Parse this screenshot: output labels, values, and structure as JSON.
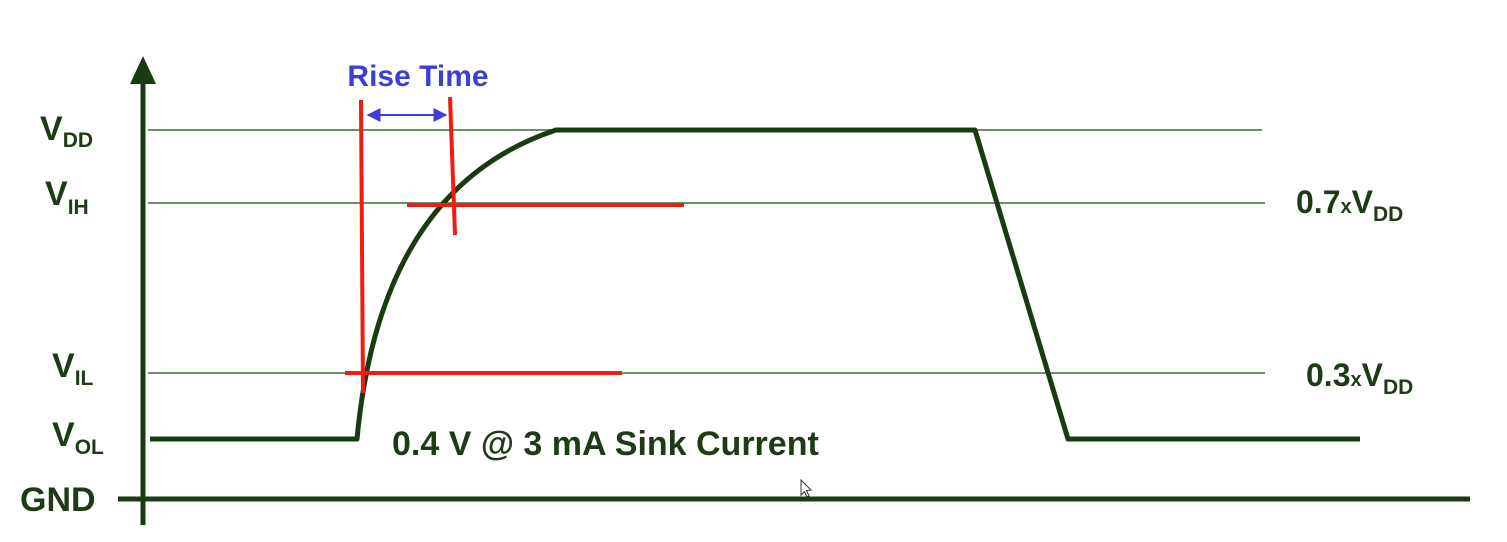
{
  "colors": {
    "axis": "#1a3a14",
    "grid": "#6f8f6a",
    "signal": "#1a3a14",
    "marker": "#f01c10",
    "rise_annotation": "#3b3fd6",
    "text": "#1e3a17"
  },
  "labels": {
    "vdd": {
      "main": "V",
      "sub": "DD"
    },
    "vih": {
      "main": "V",
      "sub": "IH"
    },
    "vil": {
      "main": "V",
      "sub": "IL"
    },
    "vol": {
      "main": "V",
      "sub": "OL"
    },
    "gnd": "GND",
    "vih_ratio": {
      "main": "0.7",
      "x": "x",
      "v": "V",
      "sub": "DD"
    },
    "vil_ratio": {
      "main": "0.3",
      "x": "x",
      "v": "V",
      "sub": "DD"
    },
    "rise_time": "Rise Time",
    "sink_current": "0.4 V @ 3 mA Sink Current"
  }
}
